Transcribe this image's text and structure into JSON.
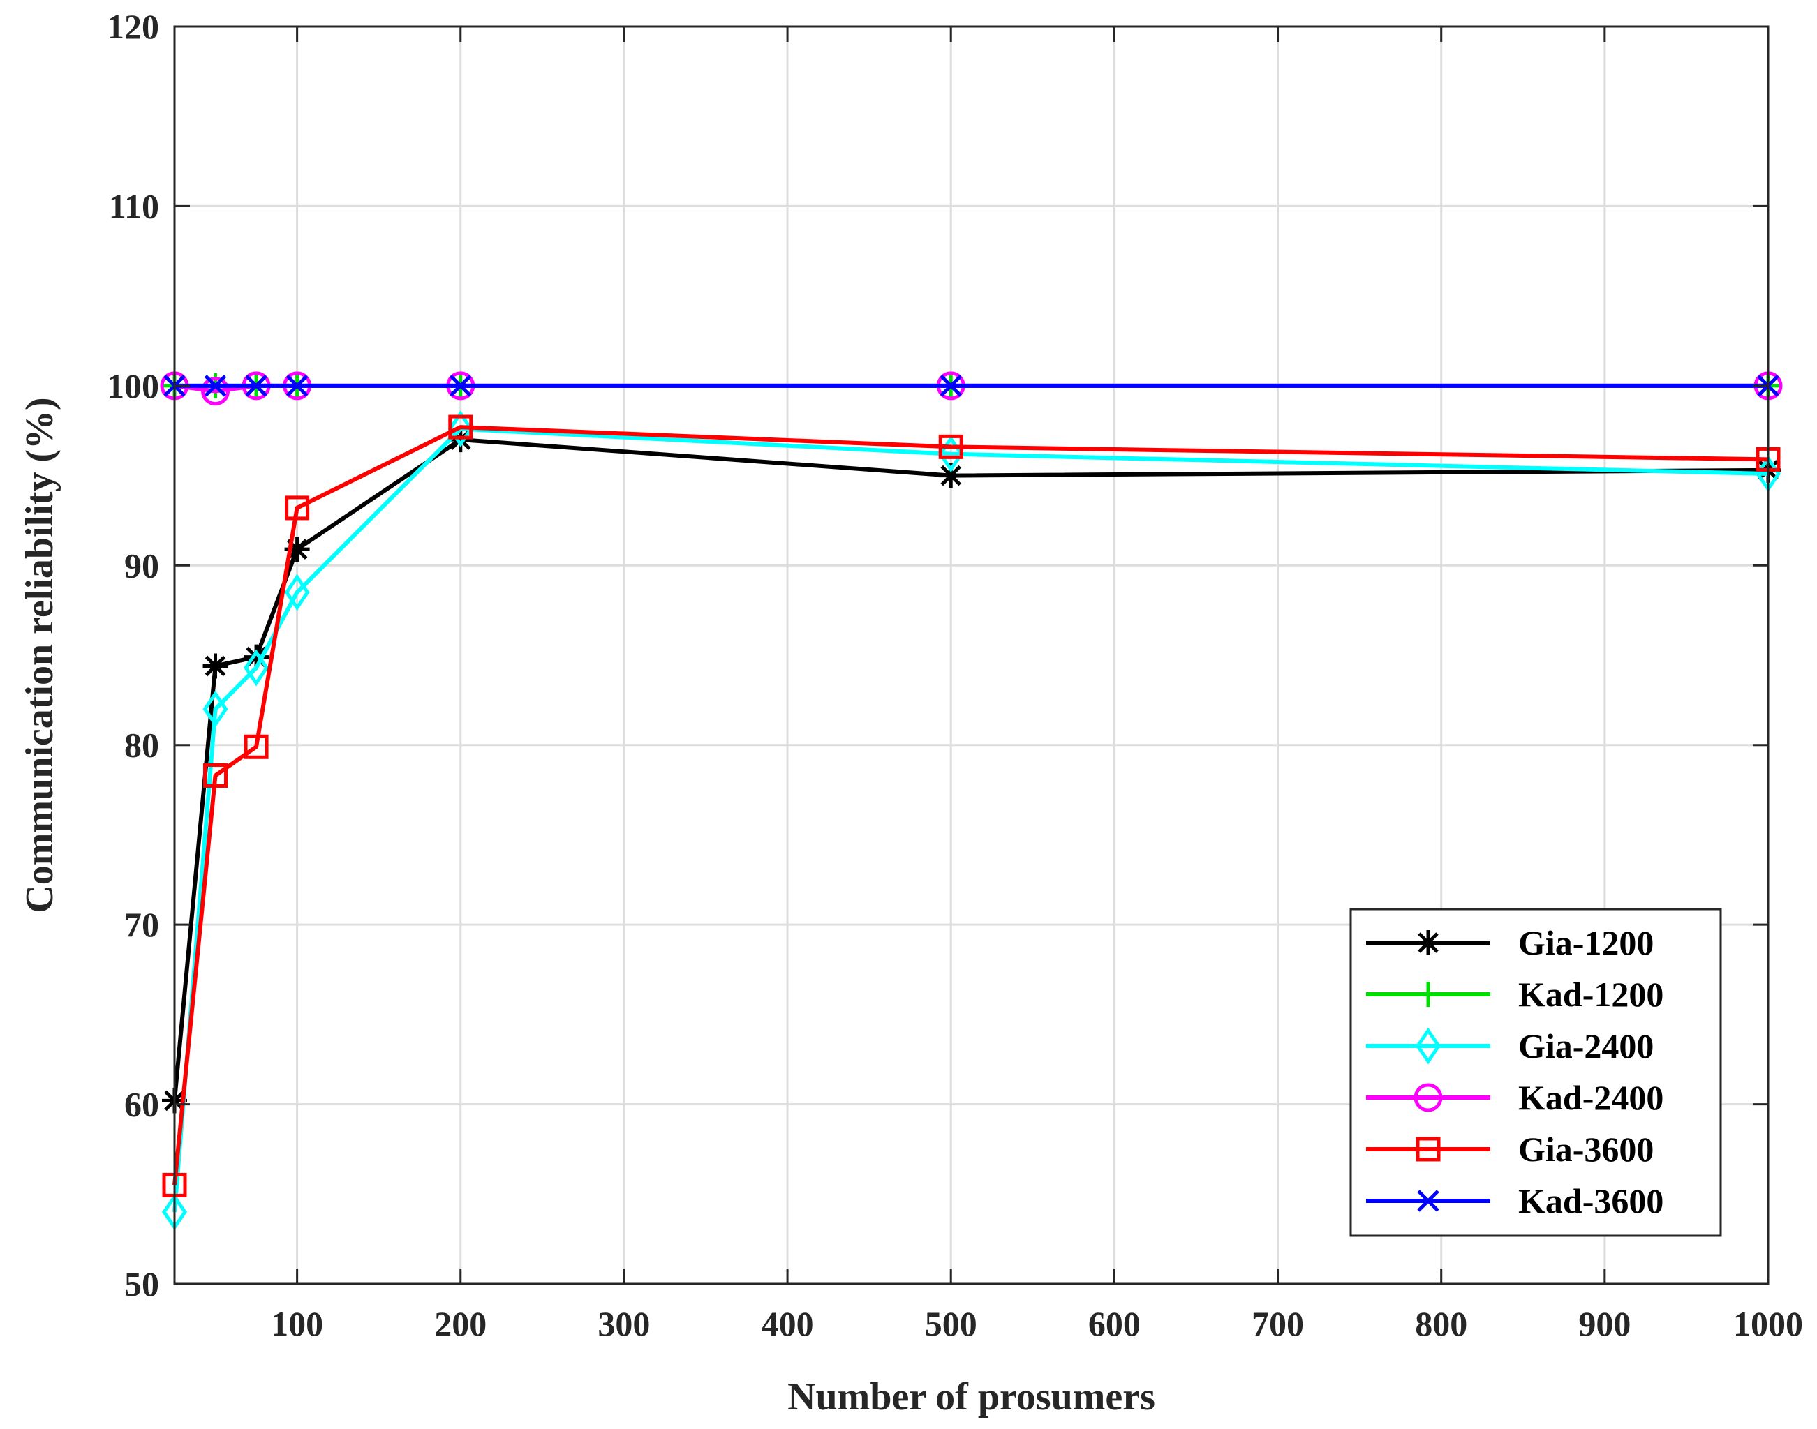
{
  "chart_data": {
    "type": "line",
    "title": "",
    "xlabel": "Number of prosumers",
    "ylabel": "Communication reliability (%)",
    "xlim": [
      25,
      1000
    ],
    "ylim": [
      50,
      120
    ],
    "xticks": [
      100,
      200,
      300,
      400,
      500,
      600,
      700,
      800,
      900,
      1000
    ],
    "yticks": [
      50,
      60,
      70,
      80,
      90,
      100,
      110,
      120
    ],
    "grid": true,
    "legend_position": "bottom-right",
    "x": [
      25,
      50,
      75,
      100,
      200,
      500,
      1000
    ],
    "series": [
      {
        "name": "Gia-1200",
        "color": "#000000",
        "marker": "asterisk",
        "values": [
          60.2,
          84.4,
          84.9,
          90.9,
          97.0,
          95.0,
          95.3
        ]
      },
      {
        "name": "Kad-1200",
        "color": "#00dd00",
        "marker": "plus",
        "values": [
          100,
          100,
          100,
          100,
          100,
          100,
          100
        ]
      },
      {
        "name": "Gia-2400",
        "color": "#00ffff",
        "marker": "diamond",
        "values": [
          54.0,
          82.0,
          84.3,
          88.5,
          97.6,
          96.2,
          95.1
        ]
      },
      {
        "name": "Kad-2400",
        "color": "#ff00ff",
        "marker": "circle",
        "values": [
          100,
          99.7,
          100,
          100,
          100,
          100,
          100
        ]
      },
      {
        "name": "Gia-3600",
        "color": "#ff0000",
        "marker": "square",
        "values": [
          55.5,
          78.3,
          79.9,
          93.2,
          97.7,
          96.6,
          95.9
        ]
      },
      {
        "name": "Kad-3600",
        "color": "#0000ff",
        "marker": "x",
        "values": [
          100,
          100,
          100,
          100,
          100,
          100,
          100
        ]
      }
    ]
  }
}
